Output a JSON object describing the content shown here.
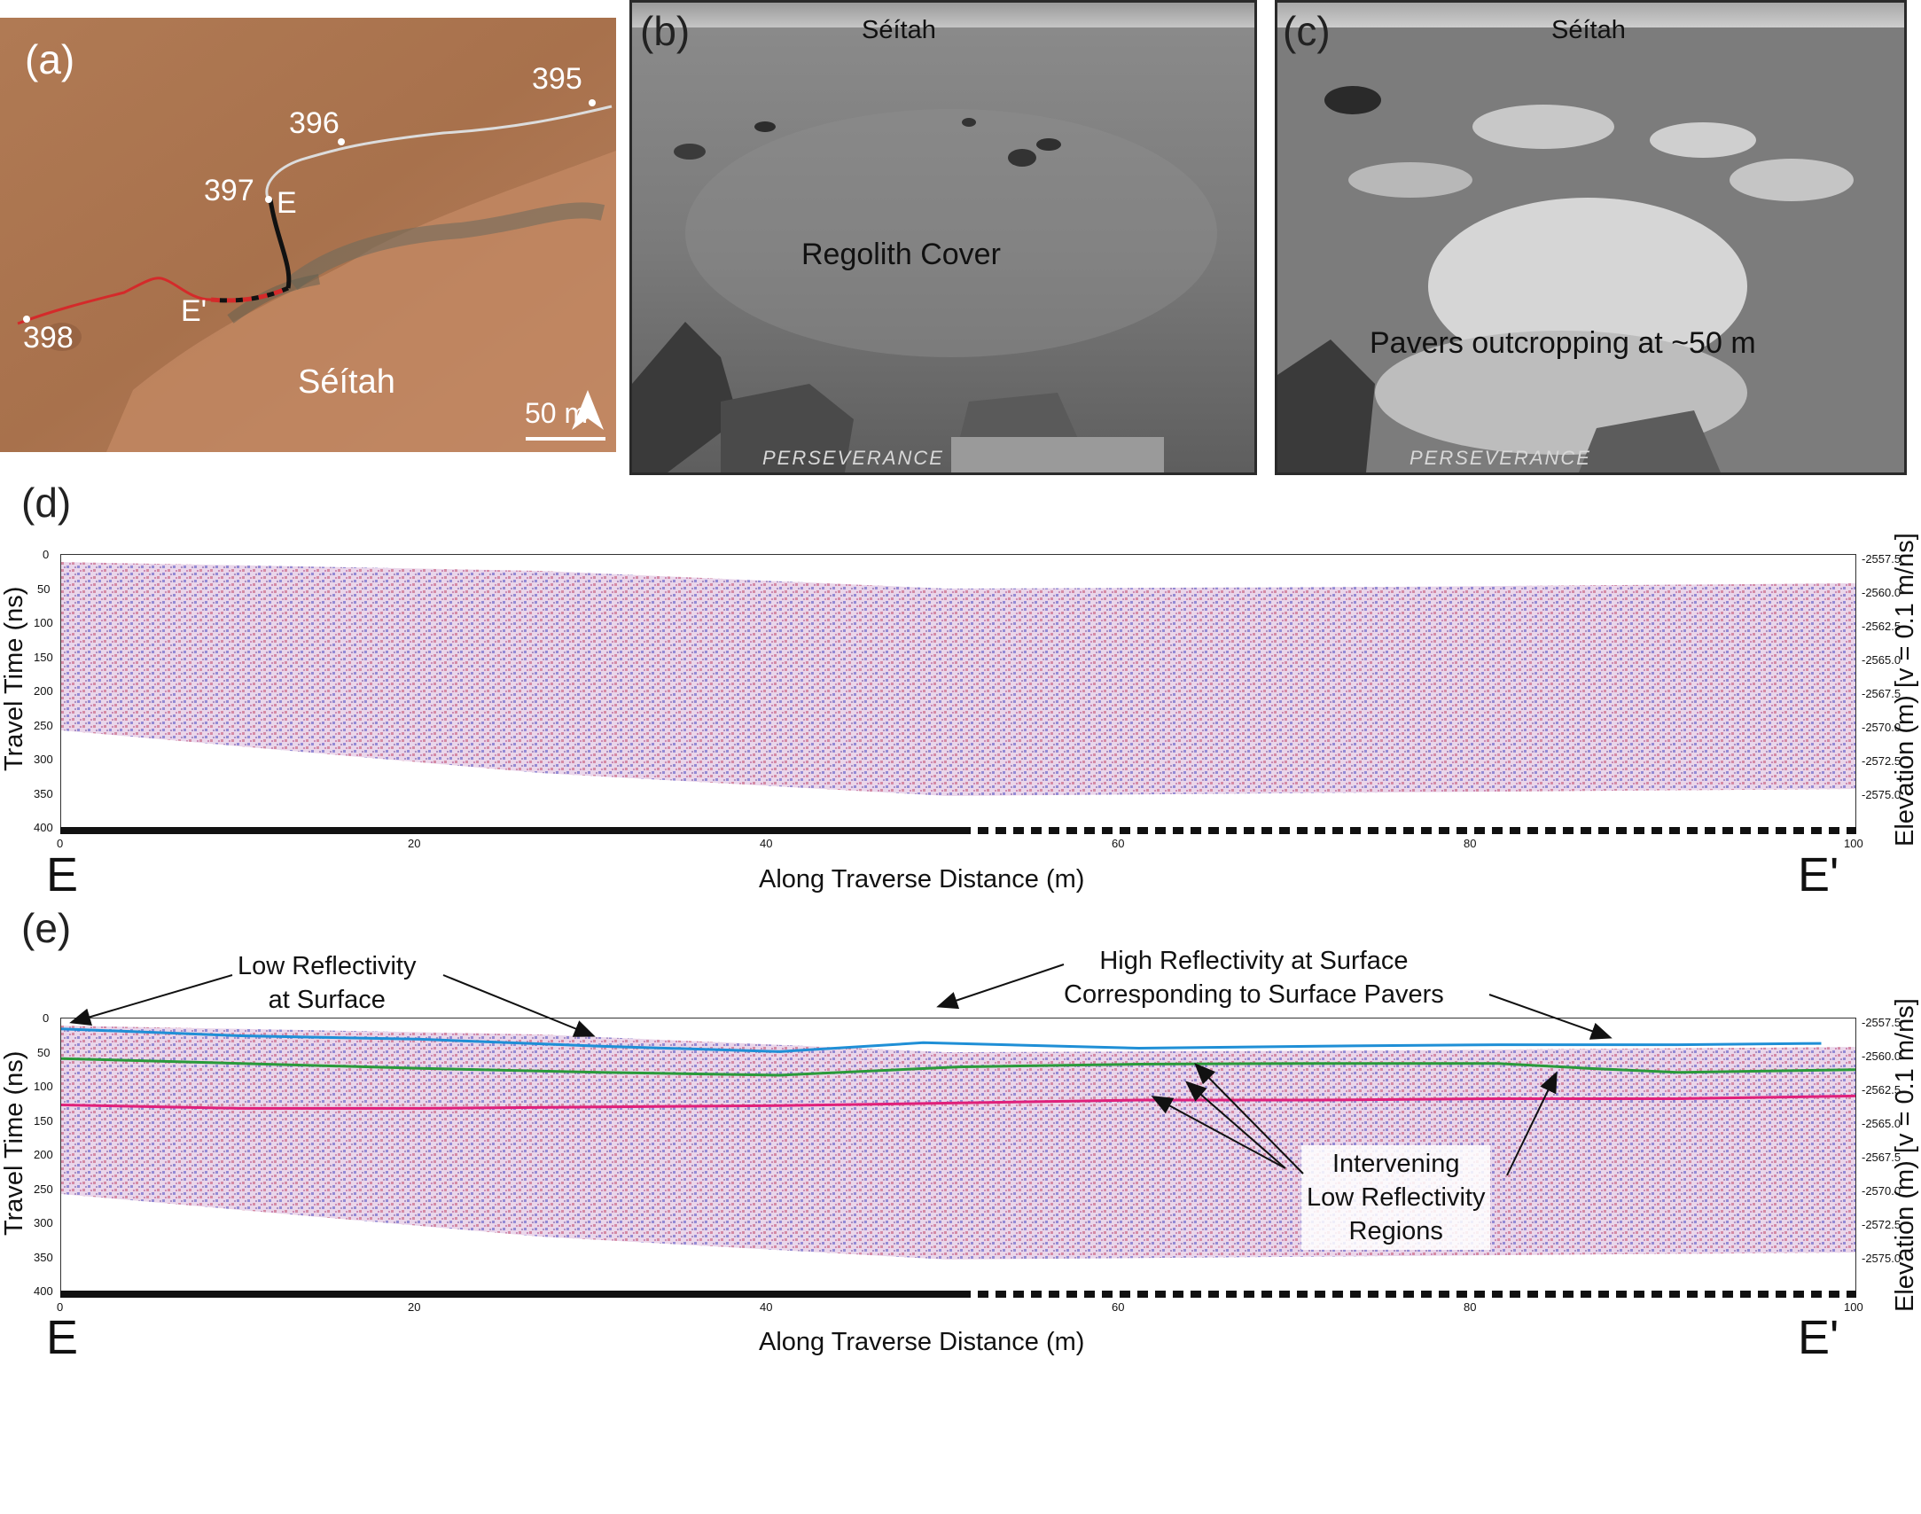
{
  "panel_a": {
    "label": "(a)",
    "waypoints": [
      "395",
      "396",
      "397",
      "398"
    ],
    "marker_e": "E",
    "marker_e_prime": "E'",
    "region": "Séítah",
    "scale": "50 m",
    "colors": {
      "terrain": "#b07a54",
      "track_prior": "#d9d9d9",
      "track_next": "#d42a2a",
      "profile": "#111111"
    }
  },
  "panel_b": {
    "label": "(b)",
    "region": "Séítah",
    "caption": "Regolith Cover",
    "rover_text": "PERSEVERANCE"
  },
  "panel_c": {
    "label": "(c)",
    "region": "Séítah",
    "caption": "Pavers outcropping at ~50 m",
    "rover_text": "PERSEVERANCE"
  },
  "panel_d": {
    "label": "(d)",
    "ylabel": "Travel Time (ns)",
    "y2label": "Elevation (m) [v = 0.1 m/ns]",
    "xlabel": "Along Traverse Distance (m)",
    "start": "E",
    "end": "E'",
    "yticks": [
      "0",
      "50",
      "100",
      "150",
      "200",
      "250",
      "300",
      "350",
      "400"
    ],
    "y2ticks": [
      "-2557.5",
      "-2560.0",
      "-2562.5",
      "-2565.0",
      "-2567.5",
      "-2570.0",
      "-2572.5",
      "-2575.0"
    ],
    "xticks": [
      "0",
      "20",
      "40",
      "60",
      "80",
      "100"
    ]
  },
  "panel_e": {
    "label": "(e)",
    "ylabel": "Travel Time (ns)",
    "y2label": "Elevation (m) [v = 0.1 m/ns]",
    "xlabel": "Along Traverse Distance (m)",
    "start": "E",
    "end": "E'",
    "yticks": [
      "0",
      "50",
      "100",
      "150",
      "200",
      "250",
      "300",
      "350",
      "400"
    ],
    "y2ticks": [
      "-2557.5",
      "-2560.0",
      "-2562.5",
      "-2565.0",
      "-2567.5",
      "-2570.0",
      "-2572.5",
      "-2575.0"
    ],
    "xticks": [
      "0",
      "20",
      "40",
      "60",
      "80",
      "100"
    ],
    "annotations": {
      "low_reflectivity_1": "Low Reflectivity",
      "low_reflectivity_2": "at Surface",
      "high_reflectivity_1": "High Reflectivity at Surface",
      "high_reflectivity_2": "Corresponding to Surface Pavers",
      "intervening_1": "Intervening",
      "intervening_2": "Low Reflectivity",
      "intervening_3": "Regions"
    },
    "colors": {
      "blue_horizon": "#1f8fd6",
      "green_horizon": "#2a9a3a",
      "pink_horizon": "#e0207a"
    }
  },
  "chart_data": [
    {
      "type": "heatmap",
      "xlabel": "Along Traverse Distance (m)",
      "ylabel": "Travel Time (ns)",
      "xlim": [
        0,
        100
      ],
      "ylim": [
        400,
        0
      ],
      "xticks": [
        0,
        20,
        40,
        60,
        80,
        100
      ],
      "yticks": [
        0,
        50,
        100,
        150,
        200,
        250,
        300,
        350,
        400
      ],
      "y2label": "Elevation (m) [v = 0.1 m/ns]",
      "y2ticks": [
        -2557.5,
        -2560.0,
        -2562.5,
        -2565.0,
        -2567.5,
        -2570.0,
        -2572.5,
        -2575.0
      ]
    },
    {
      "type": "line",
      "xlabel": "Along Traverse Distance (m)",
      "ylabel": "Travel Time (ns)",
      "xlim": [
        0,
        100
      ],
      "ylim": [
        400,
        0
      ],
      "series": [
        {
          "x": [
            0,
            10,
            20,
            30,
            40,
            48,
            60,
            70,
            80,
            90,
            98
          ],
          "y": [
            15,
            25,
            30,
            40,
            48,
            35,
            43,
            40,
            38,
            38,
            36
          ]
        },
        {
          "x": [
            0,
            10,
            20,
            30,
            40,
            50,
            60,
            70,
            80,
            85,
            90,
            100
          ],
          "y": [
            58,
            65,
            72,
            78,
            82,
            70,
            66,
            65,
            65,
            72,
            78,
            74
          ]
        },
        {
          "x": [
            0,
            10,
            20,
            30,
            40,
            50,
            60,
            70,
            80,
            90,
            100
          ],
          "y": [
            125,
            130,
            130,
            128,
            126,
            122,
            118,
            118,
            116,
            116,
            112
          ]
        }
      ]
    }
  ]
}
